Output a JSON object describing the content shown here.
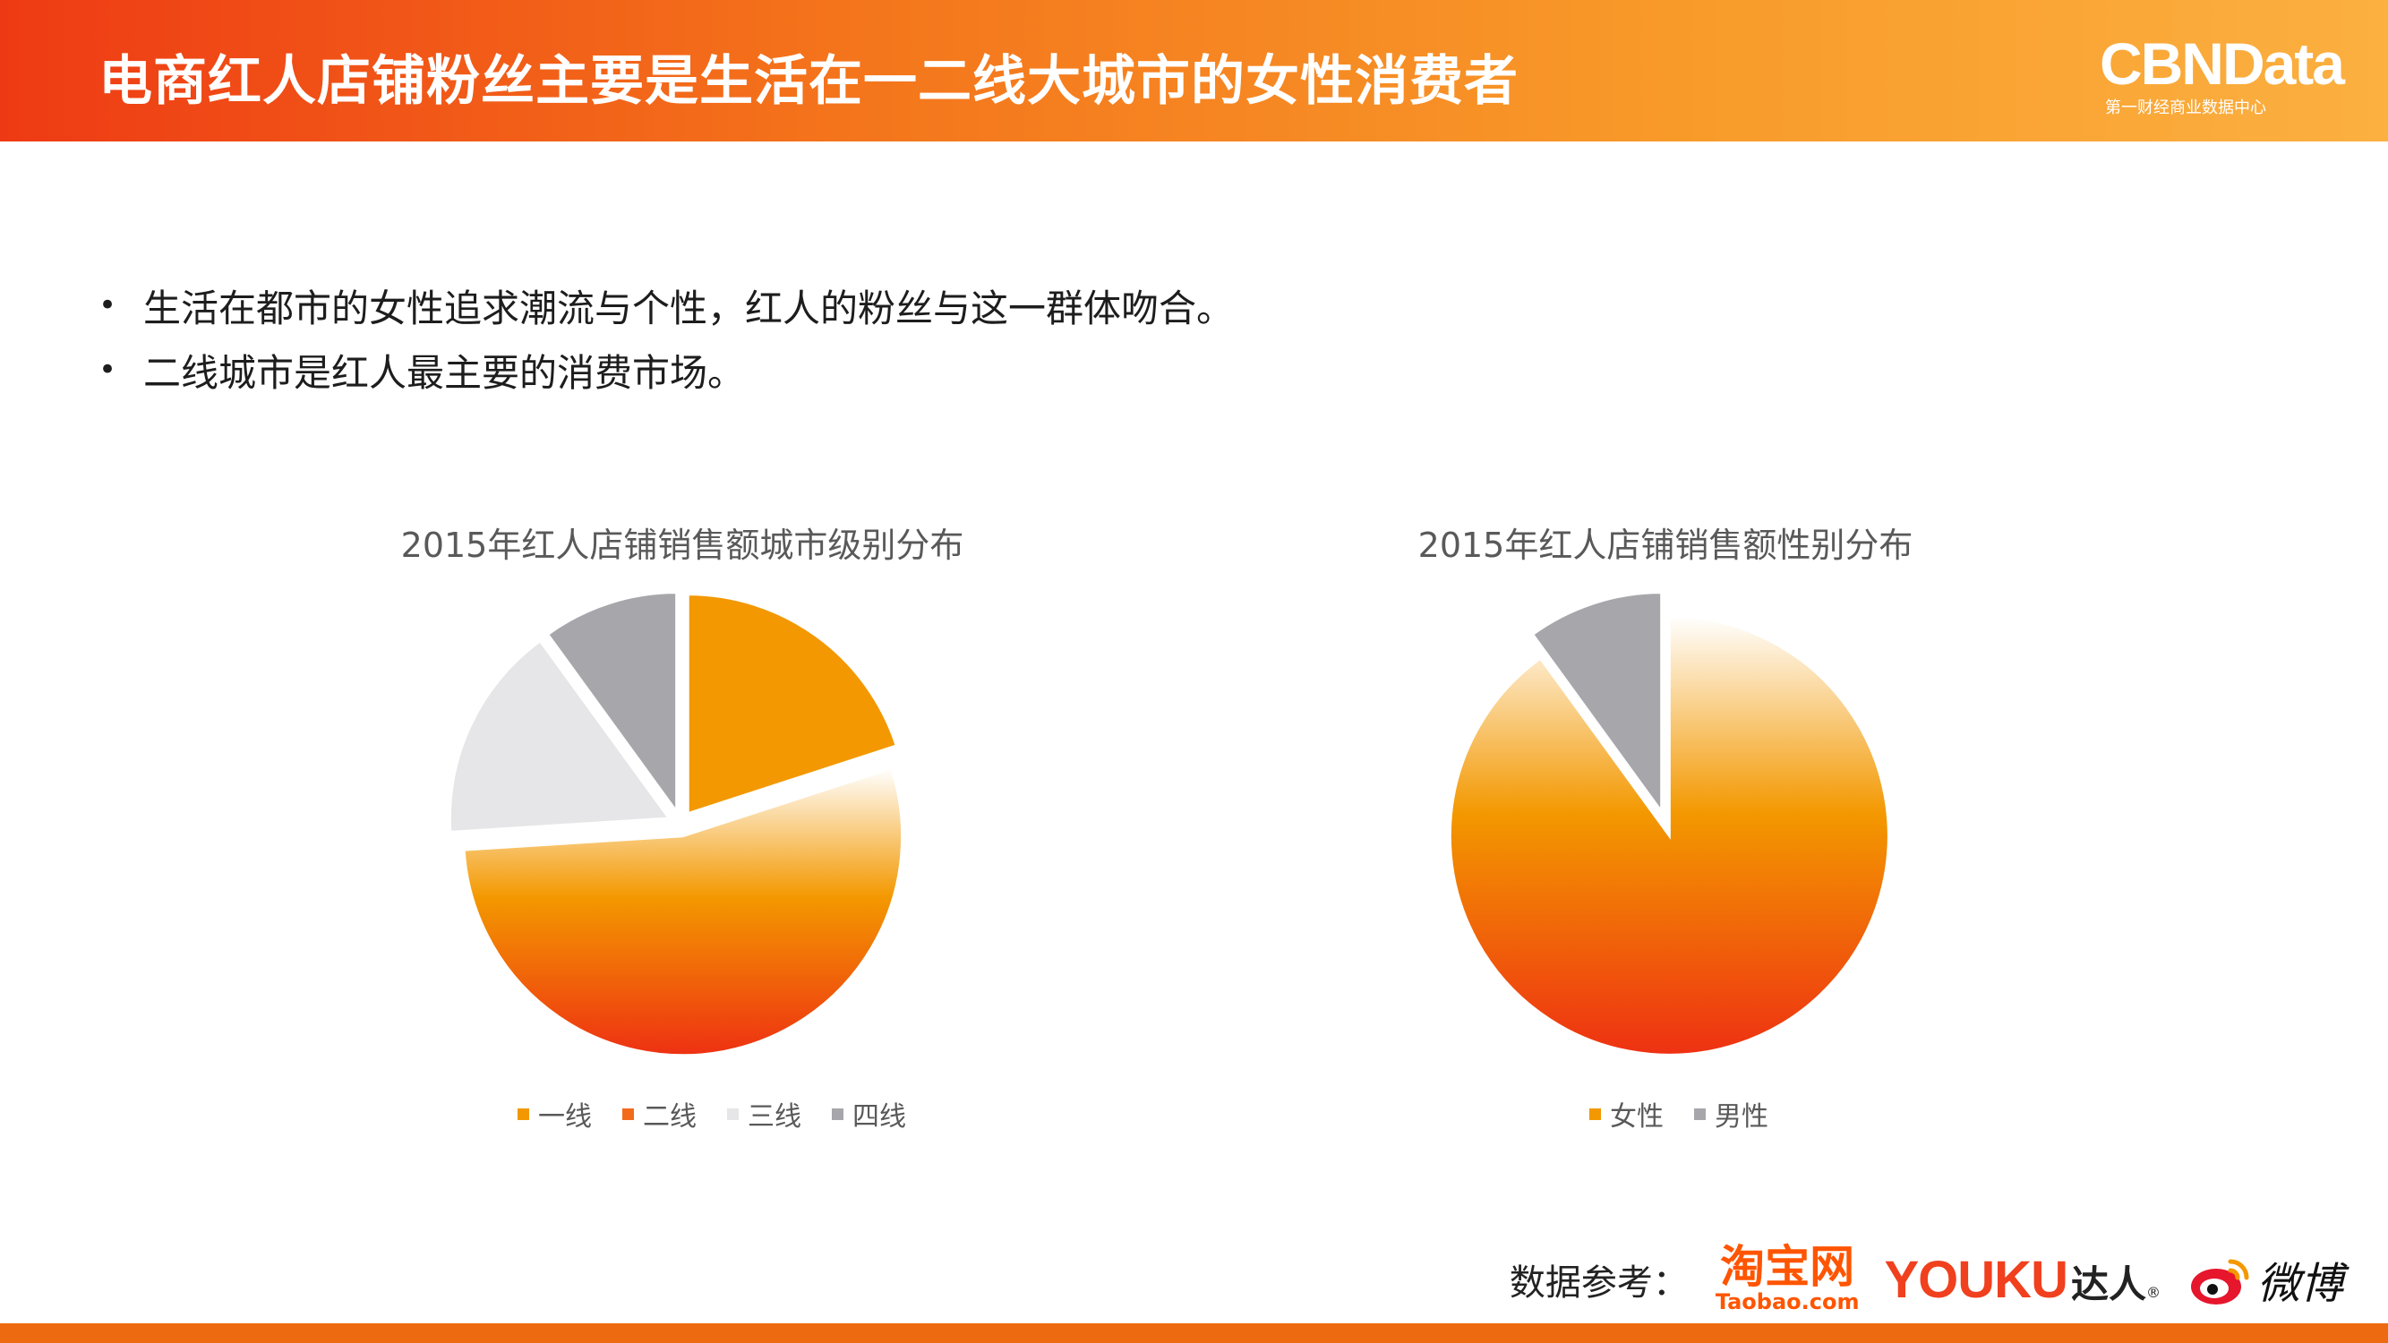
{
  "header": {
    "title": "电商红人店铺粉丝主要是生活在一二线大城市的女性消费者"
  },
  "brand": {
    "name": "CBNData",
    "subtitle": "第一财经商业数据中心"
  },
  "bullets": [
    {
      "marker": "•",
      "text": "生活在都市的女性追求潮流与个性，红人的粉丝与这一群体吻合。"
    },
    {
      "marker": "•",
      "text": "二线城市是红人最主要的消费市场。"
    }
  ],
  "chart_data": [
    {
      "type": "pie",
      "title": "2015年红人店铺销售额城市级别分布",
      "categories": [
        "一线",
        "二线",
        "三线",
        "四线"
      ],
      "values": [
        20,
        54,
        16,
        10
      ],
      "colors": [
        "#f39800",
        "#f26b1d",
        "#e6e6e8",
        "#a7a6ab"
      ],
      "exploded": true,
      "legend": "bottom"
    },
    {
      "type": "pie",
      "title": "2015年红人店铺销售额性别分布",
      "categories": [
        "女性",
        "男性"
      ],
      "values": [
        90,
        10
      ],
      "colors": [
        "#f39800",
        "#a7a6ab"
      ],
      "exploded": true,
      "legend": "bottom"
    }
  ],
  "sources": {
    "label": "数据参考：",
    "taobao_cn": "淘宝网",
    "taobao_en": "Taobao.com",
    "youku_en": "YOUKU",
    "youku_cn": "达人",
    "youku_reg": "®",
    "weibo": "微博"
  }
}
